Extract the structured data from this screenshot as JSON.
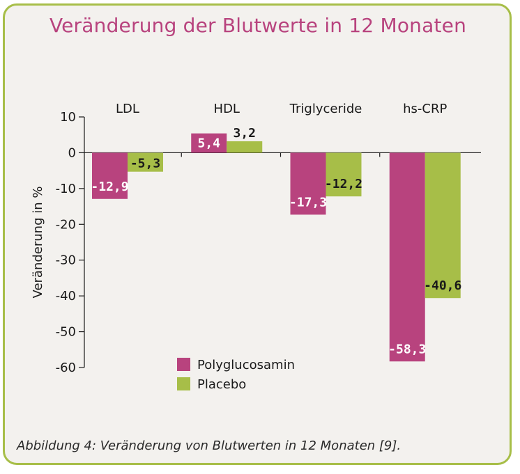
{
  "chart_data": {
    "type": "bar",
    "title": "Veränderung der Blutwerte in 12 Monaten",
    "categories": [
      "LDL",
      "HDL",
      "Triglyceride",
      "hs-CRP"
    ],
    "series": [
      {
        "name": "Polyglucosamin",
        "color": "#b8437e",
        "values": [
          -12.9,
          5.4,
          -17.3,
          -58.3
        ],
        "labels": [
          "-12,9",
          "5,4",
          "-17,3",
          "-58,3"
        ]
      },
      {
        "name": "Placebo",
        "color": "#a7be48",
        "values": [
          -5.3,
          3.2,
          -12.2,
          -40.6
        ],
        "labels": [
          "-5,3",
          "3,2",
          "-12,2",
          "-40,6"
        ]
      }
    ],
    "xlabel": "",
    "ylabel": "Veränderung in %",
    "ylim": [
      -60,
      10
    ],
    "yticks": [
      10,
      0,
      -10,
      -20,
      -30,
      -40,
      -50,
      -60
    ],
    "ytick_labels": [
      "10",
      "0",
      "-10",
      "-20",
      "-30",
      "-40",
      "-50",
      "-60"
    ],
    "grid": false,
    "legend_position": "bottom-center"
  },
  "caption": "Abbildung 4: Veränderung von Blutwerten in 12 Monaten [9]."
}
